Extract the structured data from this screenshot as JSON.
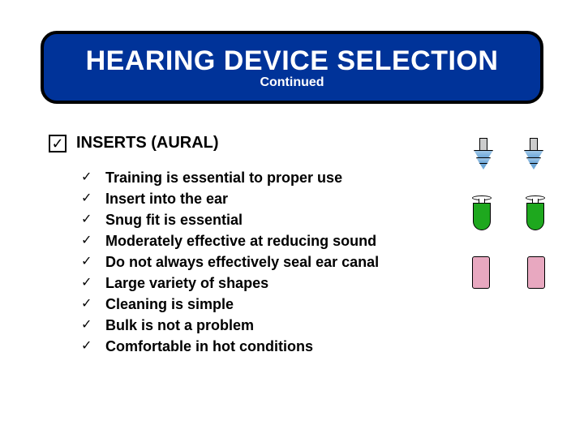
{
  "title": {
    "main": "HEARING DEVICE SELECTION",
    "sub": "Continued",
    "bg_color": "#003399",
    "border_color": "#000000",
    "text_color": "#ffffff"
  },
  "section": {
    "checkmark": "✓",
    "heading": "INSERTS (AURAL)"
  },
  "items": [
    "Training is essential to proper use",
    "Insert into the ear",
    "Snug fit is essential",
    "Moderately effective at reducing sound",
    "Do not always effectively seal ear canal",
    "Large variety of shapes",
    "Cleaning is simple",
    "Bulk is not a problem",
    "Comfortable in hot conditions"
  ],
  "bullet_glyph": "✓",
  "colors": {
    "page_bg": "#ffffff",
    "text": "#000000",
    "plug_flanged": "#6fa8d8",
    "plug_foam": "#1ea81e",
    "plug_pink": "#e8a8c0"
  },
  "graphics": [
    {
      "type": "flanged-earplug",
      "count": 2
    },
    {
      "type": "foam-earplug",
      "count": 2
    },
    {
      "type": "pink-cylinder-earplug",
      "count": 2
    }
  ]
}
